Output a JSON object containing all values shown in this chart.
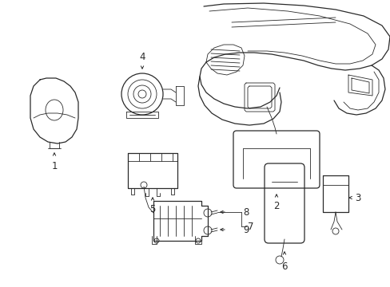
{
  "background_color": "#ffffff",
  "line_color": "#2a2a2a",
  "lw": 0.9,
  "tlw": 0.6,
  "label_fontsize": 8.5,
  "figsize": [
    4.89,
    3.6
  ],
  "dpi": 100
}
